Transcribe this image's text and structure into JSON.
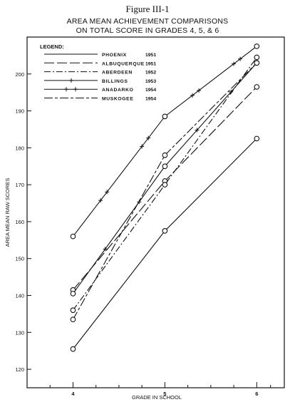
{
  "figure_label": "Figure III-1",
  "title_line1": "AREA MEAN ACHIEVEMENT COMPARISONS",
  "title_line2": "ON TOTAL SCORE IN GRADES 4, 5, & 6",
  "chart_data": {
    "type": "line",
    "xlabel": "GRADE IN SCHOOL",
    "ylabel": "AREA MEAN RAW SCORES",
    "x": [
      4,
      5,
      6
    ],
    "xlim": [
      3.5,
      6.3
    ],
    "ylim": [
      115,
      210
    ],
    "x_ticks": [
      4,
      5,
      6
    ],
    "y_ticks": [
      120,
      130,
      140,
      150,
      160,
      170,
      180,
      190,
      200
    ],
    "grid": false,
    "legend_title": "LEGEND:",
    "legend_position": "top-left",
    "series": [
      {
        "name": "PHOENIX",
        "year": "1951",
        "style": "solid",
        "values": [
          125.5,
          157.5,
          182.5
        ]
      },
      {
        "name": "ALBUQUERQUE",
        "year": "1951",
        "style": "long-dash",
        "values": [
          141.5,
          171,
          196.5
        ]
      },
      {
        "name": "ABERDEEN",
        "year": "1952",
        "style": "dash-dot",
        "values": [
          136,
          170,
          204.5
        ]
      },
      {
        "name": "BILLINGS",
        "year": "1953",
        "style": "cross",
        "values": [
          140.5,
          175,
          203
        ]
      },
      {
        "name": "ANADARKO",
        "year": "1954",
        "style": "double-cross",
        "values": [
          156,
          188.5,
          207.5
        ]
      },
      {
        "name": "MUSKOGEE",
        "year": "1954",
        "style": "long-short-dash",
        "values": [
          133.5,
          178,
          203
        ]
      }
    ]
  }
}
